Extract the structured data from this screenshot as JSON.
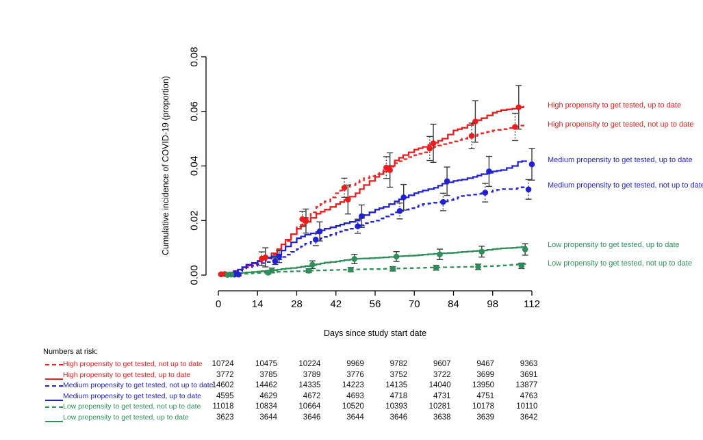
{
  "chart_data": {
    "type": "line",
    "title": "",
    "xlabel": "Days since study start date",
    "ylabel": "Cumulative incidence of COVID-19 (proportion)",
    "xlim": [
      0,
      112
    ],
    "ylim": [
      0,
      0.08
    ],
    "x_ticks": [
      0,
      14,
      28,
      42,
      56,
      70,
      84,
      98,
      112
    ],
    "x_tick_labels": [
      "0",
      "14",
      "28",
      "42",
      "56",
      "70",
      "84",
      "98",
      "112"
    ],
    "y_ticks": [
      0,
      0.02,
      0.04,
      0.06,
      0.08
    ],
    "y_tick_labels": [
      "0.00",
      "0.02",
      "0.04",
      "0.06",
      "0.08"
    ],
    "grid": false,
    "legend_position": "right-margin",
    "colors": {
      "high": "#ee1c1c",
      "medium": "#2121d4",
      "low": "#2e8f5b",
      "whisker": "#3a3a3a"
    },
    "series": [
      {
        "id": "high_utd",
        "label": "High propensity to get tested, up to date",
        "color": "#ee1c1c",
        "line": "solid",
        "points": [
          [
            0,
            0
          ],
          [
            4,
            0.001
          ],
          [
            7,
            0.002
          ],
          [
            10,
            0.0035
          ],
          [
            14,
            0.005
          ],
          [
            17,
            0.0065
          ],
          [
            21,
            0.0095
          ],
          [
            24,
            0.013
          ],
          [
            28,
            0.017
          ],
          [
            31,
            0.0195
          ],
          [
            35,
            0.0225
          ],
          [
            38,
            0.024
          ],
          [
            42,
            0.026
          ],
          [
            45,
            0.0275
          ],
          [
            49,
            0.03
          ],
          [
            52,
            0.033
          ],
          [
            56,
            0.036
          ],
          [
            59,
            0.038
          ],
          [
            63,
            0.042
          ],
          [
            66,
            0.044
          ],
          [
            70,
            0.046
          ],
          [
            73,
            0.047
          ],
          [
            77,
            0.0485
          ],
          [
            80,
            0.05
          ],
          [
            84,
            0.053
          ],
          [
            87,
            0.054
          ],
          [
            91,
            0.056
          ],
          [
            94,
            0.0575
          ],
          [
            98,
            0.0595
          ],
          [
            101,
            0.0605
          ],
          [
            105,
            0.061
          ],
          [
            109,
            0.062
          ]
        ],
        "markers": {
          "days": [
            2.3,
            16.8,
            31.3,
            46.3,
            61.3,
            76.8,
            91.8,
            107.3
          ],
          "values": [
            0.0004,
            0.0065,
            0.0198,
            0.0277,
            0.0385,
            0.0483,
            0.0563,
            0.0615
          ],
          "ci": [
            0.0006,
            0.0035,
            0.0044,
            0.0053,
            0.0063,
            0.007,
            0.0076,
            0.008
          ]
        }
      },
      {
        "id": "high_nutd",
        "label": "High propensity to get tested, not up to date",
        "color": "#ee1c1c",
        "line": "dashed",
        "points": [
          [
            0,
            0
          ],
          [
            4,
            0.0008
          ],
          [
            7,
            0.0018
          ],
          [
            10,
            0.003
          ],
          [
            14,
            0.0045
          ],
          [
            17,
            0.006
          ],
          [
            21,
            0.009
          ],
          [
            24,
            0.0125
          ],
          [
            28,
            0.0175
          ],
          [
            31,
            0.021
          ],
          [
            35,
            0.025
          ],
          [
            38,
            0.027
          ],
          [
            42,
            0.03
          ],
          [
            45,
            0.032
          ],
          [
            49,
            0.034
          ],
          [
            52,
            0.0355
          ],
          [
            56,
            0.037
          ],
          [
            59,
            0.0385
          ],
          [
            63,
            0.041
          ],
          [
            66,
            0.0425
          ],
          [
            70,
            0.044
          ],
          [
            73,
            0.045
          ],
          [
            77,
            0.047
          ],
          [
            80,
            0.048
          ],
          [
            84,
            0.049
          ],
          [
            87,
            0.05
          ],
          [
            91,
            0.051
          ],
          [
            94,
            0.052
          ],
          [
            98,
            0.053
          ],
          [
            101,
            0.0535
          ],
          [
            105,
            0.0543
          ],
          [
            109,
            0.0553
          ]
        ],
        "markers": {
          "days": [
            1,
            15.5,
            30,
            45,
            60,
            75.5,
            90.5,
            106
          ],
          "values": [
            0.0003,
            0.006,
            0.0205,
            0.032,
            0.0394,
            0.0464,
            0.051,
            0.0543
          ],
          "ci": [
            0.0004,
            0.0025,
            0.0028,
            0.0035,
            0.004,
            0.0044,
            0.0047,
            0.005
          ]
        }
      },
      {
        "id": "med_utd",
        "label": "Medium propensity to get tested, up to date",
        "color": "#2121d4",
        "line": "solid",
        "points": [
          [
            0,
            0
          ],
          [
            4,
            0.0008
          ],
          [
            7,
            0.002
          ],
          [
            10,
            0.0038
          ],
          [
            14,
            0.0052
          ],
          [
            17,
            0.0062
          ],
          [
            21,
            0.0075
          ],
          [
            24,
            0.0105
          ],
          [
            28,
            0.0135
          ],
          [
            31,
            0.0148
          ],
          [
            35,
            0.0158
          ],
          [
            38,
            0.017
          ],
          [
            42,
            0.018
          ],
          [
            45,
            0.019
          ],
          [
            49,
            0.02
          ],
          [
            52,
            0.022
          ],
          [
            56,
            0.024
          ],
          [
            59,
            0.025
          ],
          [
            63,
            0.027
          ],
          [
            66,
            0.0285
          ],
          [
            70,
            0.03
          ],
          [
            73,
            0.031
          ],
          [
            77,
            0.032
          ],
          [
            80,
            0.0335
          ],
          [
            84,
            0.0345
          ],
          [
            87,
            0.035
          ],
          [
            91,
            0.036
          ],
          [
            94,
            0.037
          ],
          [
            98,
            0.038
          ],
          [
            101,
            0.0385
          ],
          [
            105,
            0.04
          ],
          [
            107,
            0.0415
          ],
          [
            110,
            0.042
          ]
        ],
        "markers": {
          "days": [
            7.2,
            21.7,
            36.2,
            51.2,
            66.2,
            81.7,
            96.7,
            112
          ],
          "values": [
            0.0002,
            0.0068,
            0.016,
            0.0216,
            0.0285,
            0.0344,
            0.038,
            0.0406
          ],
          "ci": [
            0.0005,
            0.0022,
            0.0035,
            0.0041,
            0.0047,
            0.0052,
            0.0055,
            0.0058
          ]
        }
      },
      {
        "id": "med_nutd",
        "label": "Medium propensity to get tested, not up to date",
        "color": "#2121d4",
        "line": "dashed",
        "points": [
          [
            0,
            0
          ],
          [
            4,
            0.0005
          ],
          [
            7,
            0.0015
          ],
          [
            10,
            0.0028
          ],
          [
            14,
            0.004
          ],
          [
            17,
            0.0048
          ],
          [
            21,
            0.0058
          ],
          [
            24,
            0.0075
          ],
          [
            28,
            0.0095
          ],
          [
            31,
            0.0115
          ],
          [
            35,
            0.013
          ],
          [
            38,
            0.014
          ],
          [
            42,
            0.0155
          ],
          [
            45,
            0.0165
          ],
          [
            49,
            0.0175
          ],
          [
            52,
            0.019
          ],
          [
            56,
            0.02
          ],
          [
            59,
            0.0215
          ],
          [
            63,
            0.023
          ],
          [
            66,
            0.024
          ],
          [
            70,
            0.025
          ],
          [
            73,
            0.026
          ],
          [
            77,
            0.0265
          ],
          [
            80,
            0.027
          ],
          [
            84,
            0.028
          ],
          [
            87,
            0.029
          ],
          [
            91,
            0.0295
          ],
          [
            94,
            0.03
          ],
          [
            98,
            0.031
          ],
          [
            101,
            0.0315
          ],
          [
            105,
            0.0315
          ],
          [
            110,
            0.0325
          ]
        ],
        "markers": {
          "days": [
            5.8,
            20.3,
            34.8,
            49.8,
            64.8,
            80.3,
            95.3,
            110.8
          ],
          "values": [
            0.0002,
            0.0051,
            0.013,
            0.0179,
            0.0235,
            0.0268,
            0.0302,
            0.0314
          ],
          "ci": [
            0.0003,
            0.0012,
            0.0022,
            0.0026,
            0.0029,
            0.0032,
            0.0034,
            0.0036
          ]
        }
      },
      {
        "id": "low_utd",
        "label": "Low propensity to get tested, up to date",
        "color": "#2e8f5b",
        "line": "solid",
        "points": [
          [
            0,
            0
          ],
          [
            4,
            0.0003
          ],
          [
            7,
            0.0007
          ],
          [
            10,
            0.001
          ],
          [
            14,
            0.0013
          ],
          [
            17,
            0.0016
          ],
          [
            21,
            0.002
          ],
          [
            24,
            0.0024
          ],
          [
            28,
            0.0028
          ],
          [
            31,
            0.0033
          ],
          [
            35,
            0.004
          ],
          [
            38,
            0.0046
          ],
          [
            42,
            0.005
          ],
          [
            45,
            0.0055
          ],
          [
            49,
            0.006
          ],
          [
            52,
            0.0061
          ],
          [
            56,
            0.0063
          ],
          [
            59,
            0.0065
          ],
          [
            63,
            0.0068
          ],
          [
            66,
            0.007
          ],
          [
            70,
            0.0072
          ],
          [
            73,
            0.0075
          ],
          [
            77,
            0.0078
          ],
          [
            80,
            0.008
          ],
          [
            84,
            0.0082
          ],
          [
            87,
            0.0085
          ],
          [
            91,
            0.0088
          ],
          [
            94,
            0.009
          ],
          [
            98,
            0.0095
          ],
          [
            101,
            0.0098
          ],
          [
            105,
            0.01
          ],
          [
            110,
            0.0105
          ]
        ],
        "markers": {
          "days": [
            4.6,
            19.1,
            33.6,
            48.6,
            63.6,
            79.1,
            94.1,
            109.6
          ],
          "values": [
            0.0002,
            0.0017,
            0.0038,
            0.0059,
            0.0068,
            0.0076,
            0.0086,
            0.0094
          ],
          "ci": [
            0.0003,
            0.0009,
            0.0014,
            0.0017,
            0.0018,
            0.0019,
            0.002,
            0.0021
          ]
        }
      },
      {
        "id": "low_nutd",
        "label": "Low propensity to get tested, not up to date",
        "color": "#2e8f5b",
        "line": "dashed",
        "points": [
          [
            0,
            0
          ],
          [
            4,
            0.0002
          ],
          [
            7,
            0.0004
          ],
          [
            14,
            0.0008
          ],
          [
            21,
            0.0012
          ],
          [
            28,
            0.0014
          ],
          [
            35,
            0.0017
          ],
          [
            42,
            0.0019
          ],
          [
            49,
            0.0021
          ],
          [
            56,
            0.0022
          ],
          [
            63,
            0.0024
          ],
          [
            70,
            0.0026
          ],
          [
            77,
            0.0028
          ],
          [
            84,
            0.0029
          ],
          [
            91,
            0.0031
          ],
          [
            98,
            0.0033
          ],
          [
            105,
            0.0038
          ],
          [
            110,
            0.0042
          ]
        ],
        "markers": {
          "days": [
            3.3,
            17.8,
            32.3,
            47.3,
            62.3,
            77.8,
            92.8,
            108.3
          ],
          "values": [
            0.0001,
            0.0009,
            0.0016,
            0.002,
            0.0023,
            0.0027,
            0.003,
            0.0034
          ],
          "ci": [
            0.0002,
            0.0005,
            0.0007,
            0.0008,
            0.0008,
            0.0009,
            0.001,
            0.001
          ]
        }
      }
    ],
    "numbers_at_risk": {
      "heading": "Numbers at risk:",
      "rows": [
        {
          "series": "high_nutd",
          "values": [
            10724,
            10475,
            10224,
            9969,
            9782,
            9607,
            9467,
            9363
          ]
        },
        {
          "series": "high_utd",
          "values": [
            3772,
            3785,
            3789,
            3776,
            3752,
            3722,
            3699,
            3691
          ]
        },
        {
          "series": "med_nutd",
          "values": [
            14602,
            14462,
            14335,
            14223,
            14135,
            14040,
            13950,
            13877
          ]
        },
        {
          "series": "med_utd",
          "values": [
            4595,
            4629,
            4672,
            4693,
            4718,
            4731,
            4751,
            4763
          ]
        },
        {
          "series": "low_nutd",
          "values": [
            11018,
            10834,
            10664,
            10520,
            10393,
            10281,
            10178,
            10110
          ]
        },
        {
          "series": "low_utd",
          "values": [
            3623,
            3644,
            3646,
            3644,
            3646,
            3638,
            3639,
            3642
          ]
        }
      ]
    }
  }
}
